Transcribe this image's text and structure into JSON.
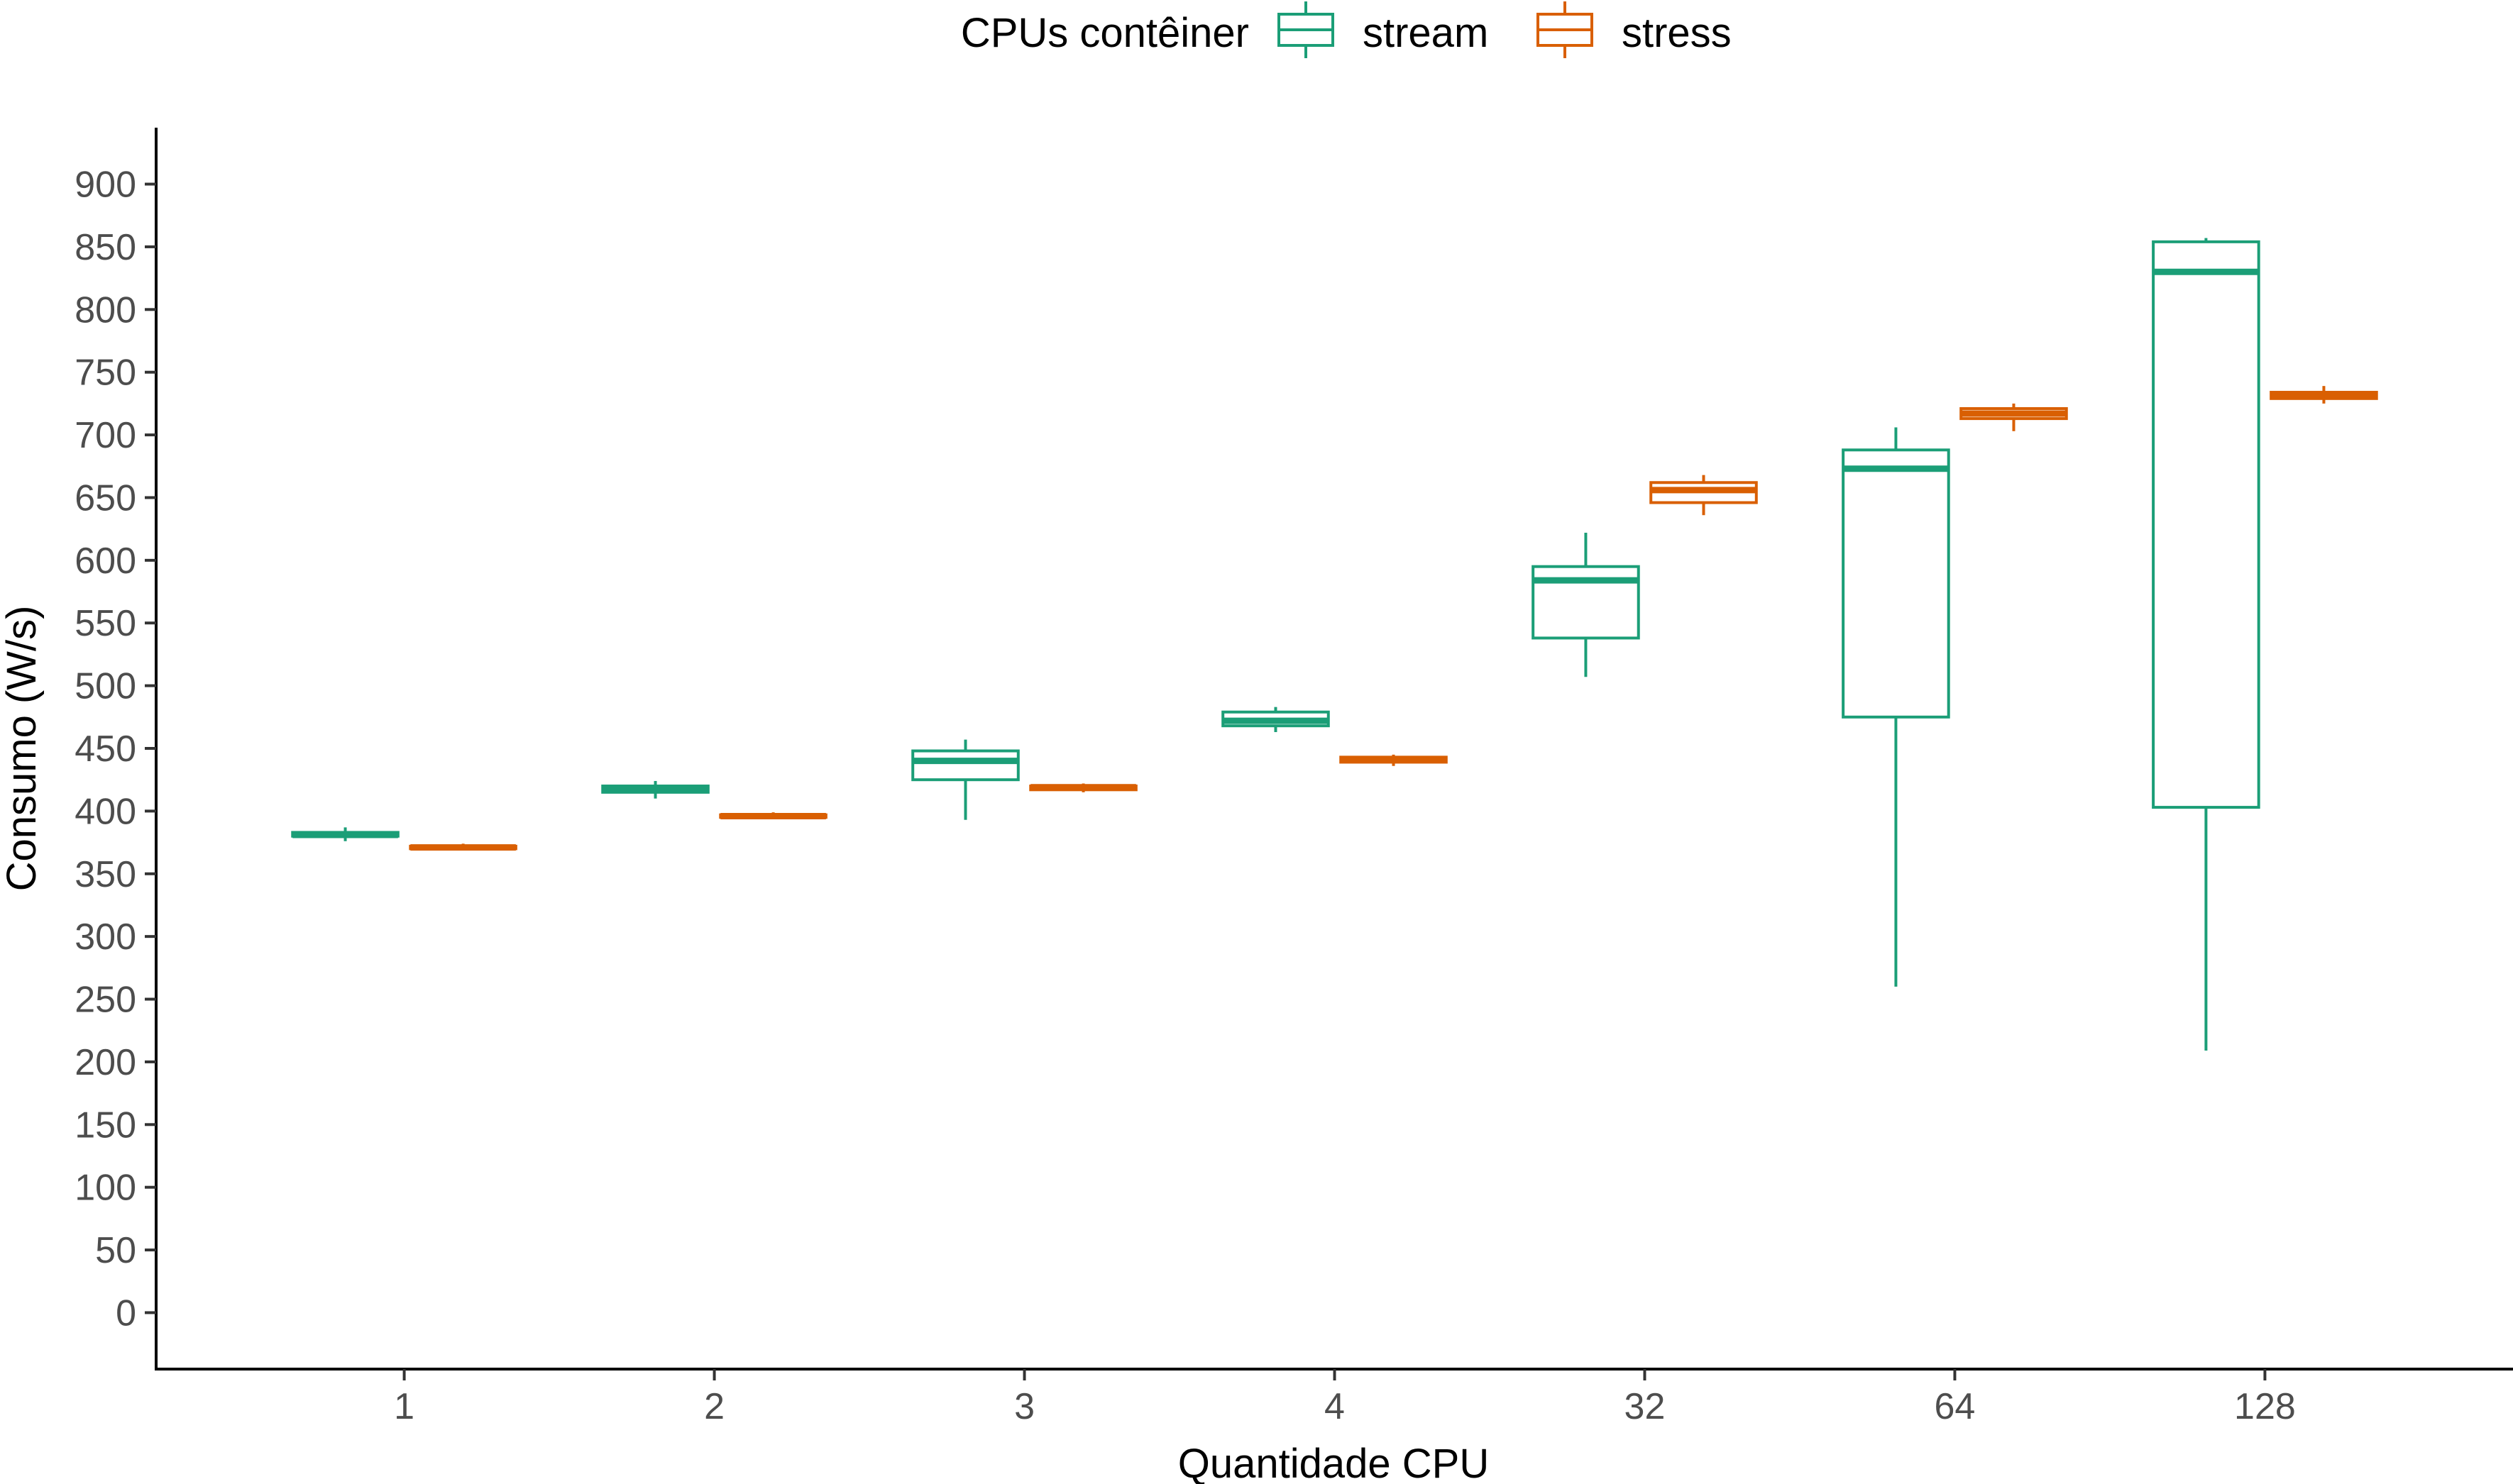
{
  "chart_data": {
    "type": "boxplot",
    "xlabel": "Quantidade CPU",
    "ylabel": "Consumo (W/s)",
    "categories": [
      "1",
      "2",
      "3",
      "4",
      "32",
      "64",
      "128"
    ],
    "ylim": [
      -45,
      945
    ],
    "yticks": [
      0,
      50,
      100,
      150,
      200,
      250,
      300,
      350,
      400,
      450,
      500,
      550,
      600,
      650,
      700,
      750,
      800,
      850,
      900
    ],
    "grid": false,
    "legend": {
      "title": "CPUs contêiner",
      "position": "top",
      "entries": [
        "stream",
        "stress"
      ]
    },
    "series": [
      {
        "name": "stream",
        "color": "#1b9e77",
        "boxes": [
          {
            "min": 376,
            "q1": 380,
            "median": 381,
            "q3": 383,
            "max": 387
          },
          {
            "min": 410,
            "q1": 415,
            "median": 417,
            "q3": 420,
            "max": 424
          },
          {
            "min": 393,
            "q1": 425,
            "median": 440,
            "q3": 448,
            "max": 457
          },
          {
            "min": 463,
            "q1": 468,
            "median": 472,
            "q3": 479,
            "max": 483
          },
          {
            "min": 507,
            "q1": 538,
            "median": 584,
            "q3": 595,
            "max": 622
          },
          {
            "min": 260,
            "q1": 475,
            "median": 673,
            "q3": 688,
            "max": 706
          },
          {
            "min": 209,
            "q1": 403,
            "median": 830,
            "q3": 854,
            "max": 857
          }
        ]
      },
      {
        "name": "stress",
        "color": "#d95f02",
        "boxes": [
          {
            "min": 369,
            "q1": 370,
            "median": 371,
            "q3": 372,
            "max": 374
          },
          {
            "min": 394,
            "q1": 395,
            "median": 396,
            "q3": 397,
            "max": 399
          },
          {
            "min": 415,
            "q1": 417,
            "median": 419,
            "q3": 420,
            "max": 422
          },
          {
            "min": 436,
            "q1": 439,
            "median": 441,
            "q3": 443,
            "max": 445
          },
          {
            "min": 636,
            "q1": 646,
            "median": 656,
            "q3": 662,
            "max": 668
          },
          {
            "min": 703,
            "q1": 713,
            "median": 717,
            "q3": 721,
            "max": 725
          },
          {
            "min": 725,
            "q1": 729,
            "median": 731,
            "q3": 734,
            "max": 739
          }
        ]
      }
    ]
  }
}
